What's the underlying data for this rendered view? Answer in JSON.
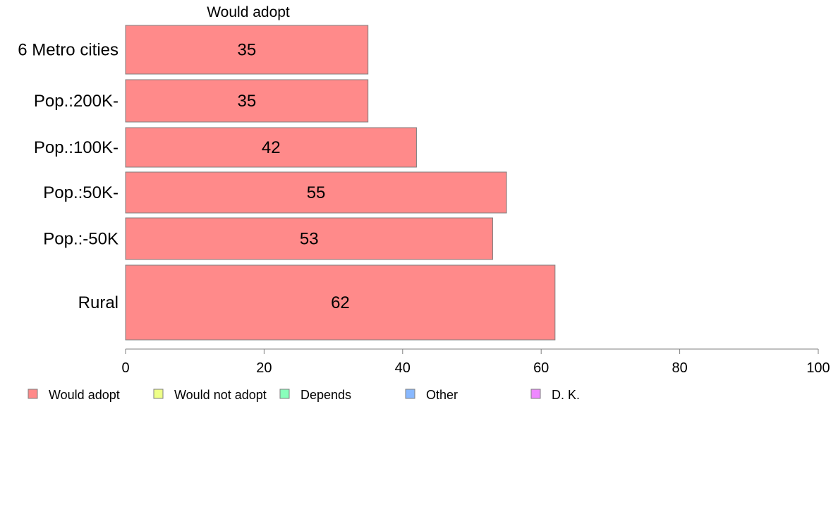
{
  "chart_data": {
    "type": "bar",
    "orientation": "horizontal",
    "top_label": "Would adopt",
    "categories": [
      "6 Metro cities",
      "Pop.:200K-",
      "Pop.:100K-",
      "Pop.:50K-",
      "Pop.:-50K",
      "Rural"
    ],
    "series": [
      {
        "name": "Would adopt",
        "color": "#ff8a8a",
        "values": [
          35,
          35,
          42,
          55,
          53,
          62
        ]
      }
    ],
    "data_labels": [
      "35",
      "35",
      "42",
      "55",
      "53",
      "62"
    ],
    "xlim": [
      0,
      100
    ],
    "xticks": [
      0,
      20,
      40,
      60,
      80,
      100
    ],
    "xtick_labels": [
      "0",
      "20",
      "40",
      "60",
      "80",
      "100"
    ],
    "xlabel": "",
    "ylabel": "",
    "grid": false,
    "legend": {
      "placement": "bottom",
      "items": [
        {
          "label": "Would adopt",
          "color": "#ff8a8a"
        },
        {
          "label": "Would not adopt",
          "color": "#eeff88"
        },
        {
          "label": "Depends",
          "color": "#88ffbb"
        },
        {
          "label": "Other",
          "color": "#88b8ff"
        },
        {
          "label": "D. K.",
          "color": "#ee88ff"
        }
      ]
    }
  }
}
